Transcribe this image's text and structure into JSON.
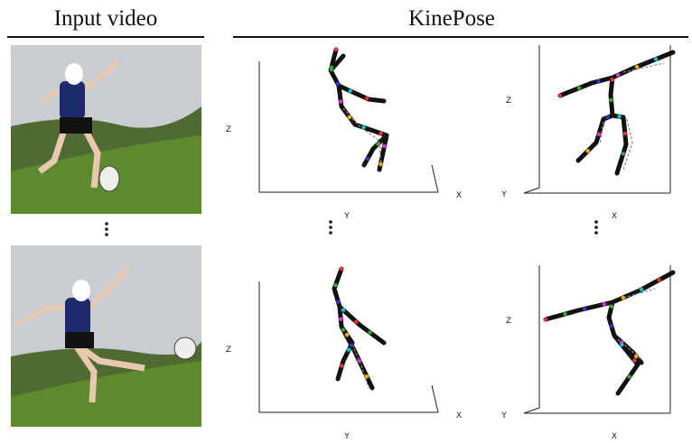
{
  "header": {
    "left": "Input video",
    "right": "KinePose"
  },
  "plots": [
    {
      "z": "Z",
      "x": "X",
      "y": "Y"
    },
    {
      "z": "Z",
      "x": "X",
      "y": "Y"
    },
    {
      "z": "Z",
      "x": "X",
      "y": "Y"
    },
    {
      "z": "Z",
      "x": "X",
      "y": "Y"
    }
  ]
}
